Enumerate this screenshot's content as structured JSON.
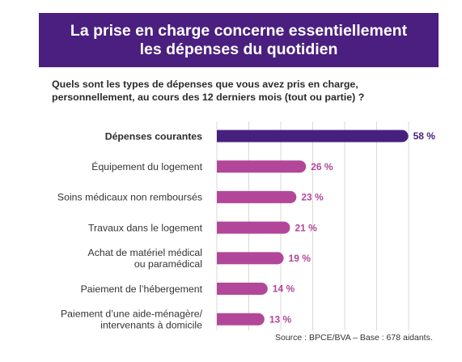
{
  "banner": {
    "line1": "La prise en charge concerne essentiellement",
    "line2": "les dépenses du quotidien"
  },
  "question": {
    "line1": "Quels sont les types de dépenses que vous avez pris en charge,",
    "line2": "personnellement, au cours des 12 derniers mois (tout ou partie) ?"
  },
  "colors": {
    "banner_bg": "#4a1f7f",
    "highlight_bar": "#47207e",
    "bar": "#b2479a",
    "highlight_value": "#47207e",
    "value": "#b2479a",
    "gridline": "#d8d8d8"
  },
  "chart_data": {
    "type": "bar",
    "orientation": "horizontal",
    "categories": [
      [
        "Dépenses courantes"
      ],
      [
        "Équipement du logement"
      ],
      [
        "Soins médicaux non remboursés"
      ],
      [
        "Travaux dans le logement"
      ],
      [
        "Achat de matériel médical",
        "ou paramédical"
      ],
      [
        "Paiement de l’hébergement"
      ],
      [
        "Paiement d’une aide-ménagère/",
        "intervenants à domicile"
      ]
    ],
    "values": [
      58,
      26,
      23,
      21,
      19,
      14,
      13
    ],
    "value_labels": [
      "58 %",
      "26 %",
      "23 %",
      "21 %",
      "19 %",
      "14 %",
      "13 %"
    ],
    "highlight_index": 0,
    "unit": "%",
    "grid": true
  },
  "source": "Source : BPCE/BVA – Base : 678 aidants."
}
